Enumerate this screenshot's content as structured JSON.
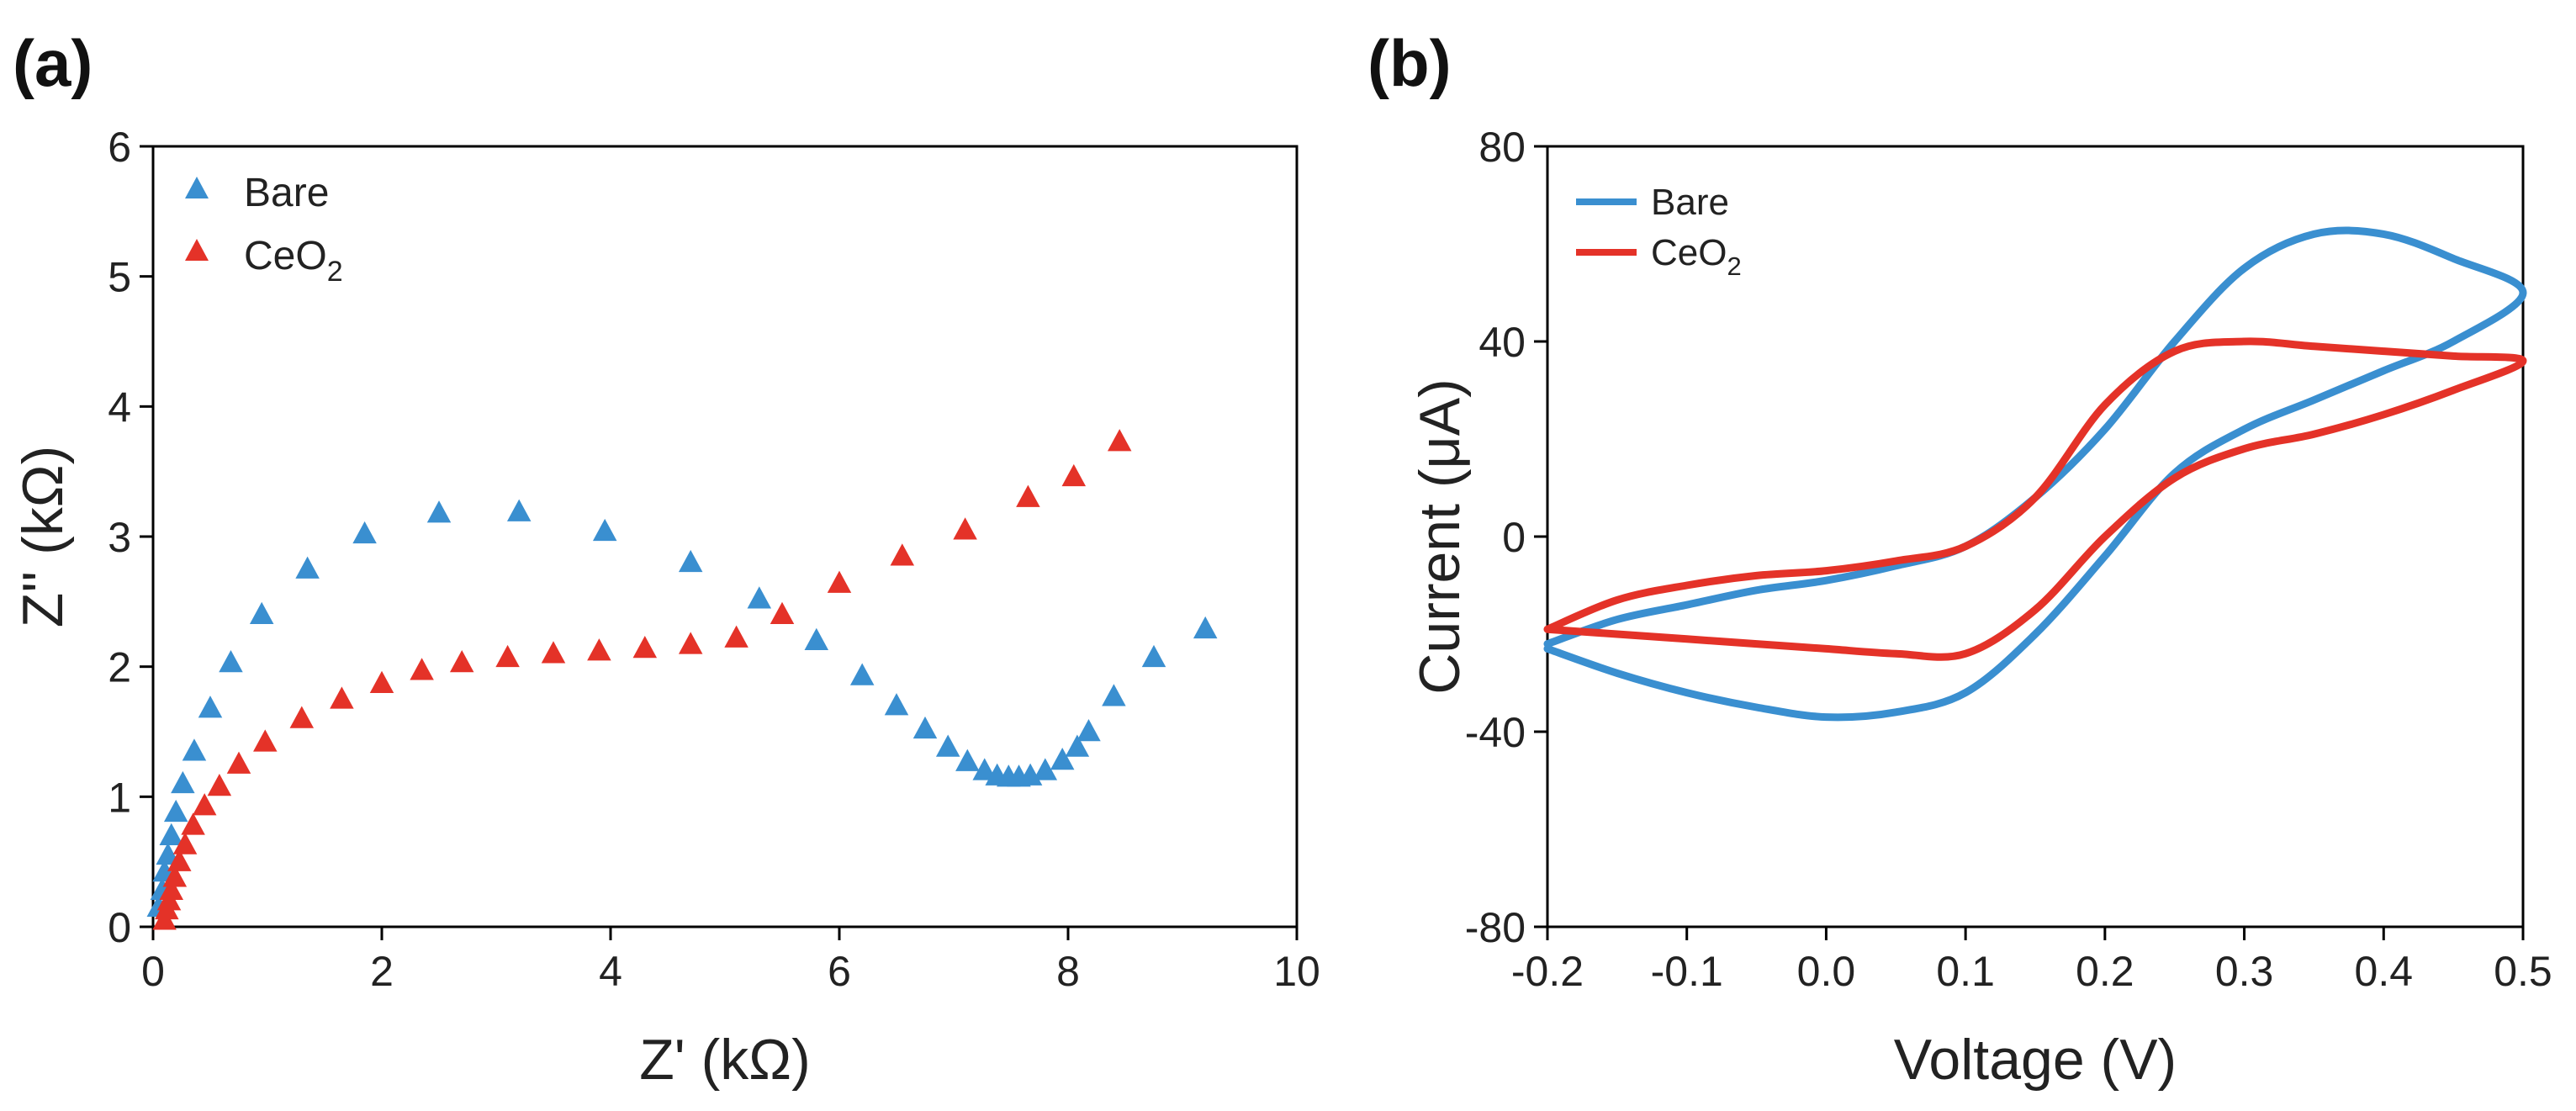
{
  "chart_data": [
    {
      "panel": "(a)",
      "type": "scatter",
      "xlabel": "Z' (kΩ)",
      "ylabel": "Z'' (kΩ)",
      "xlim": [
        0,
        10
      ],
      "ylim": [
        0,
        6
      ],
      "xticks": [
        "0",
        "2",
        "4",
        "6",
        "8",
        "10"
      ],
      "yticks": [
        "0",
        "1",
        "2",
        "3",
        "4",
        "5",
        "6"
      ],
      "legend": {
        "position": "top-left",
        "entries": [
          {
            "label": "Bare",
            "sub": ""
          },
          {
            "label": "CeO",
            "sub": "2"
          }
        ]
      },
      "series": [
        {
          "name": "Bare",
          "color": "#3a8fd0",
          "marker": "triangle",
          "x": [
            0.05,
            0.08,
            0.1,
            0.13,
            0.16,
            0.2,
            0.26,
            0.36,
            0.5,
            0.68,
            0.95,
            1.35,
            1.85,
            2.5,
            3.2,
            3.95,
            4.7,
            5.3,
            5.8,
            6.2,
            6.5,
            6.75,
            6.95,
            7.12,
            7.27,
            7.38,
            7.48,
            7.57,
            7.67,
            7.8,
            7.95,
            8.08,
            8.18,
            8.4,
            8.75,
            9.2
          ],
          "y": [
            0.15,
            0.28,
            0.42,
            0.55,
            0.7,
            0.88,
            1.1,
            1.35,
            1.68,
            2.03,
            2.4,
            2.75,
            3.02,
            3.18,
            3.19,
            3.04,
            2.8,
            2.52,
            2.2,
            1.93,
            1.7,
            1.52,
            1.38,
            1.27,
            1.2,
            1.16,
            1.15,
            1.15,
            1.16,
            1.2,
            1.28,
            1.38,
            1.5,
            1.77,
            2.07,
            2.29
          ]
        },
        {
          "name": "CeO2",
          "color": "#e43228",
          "marker": "triangle",
          "x": [
            0.1,
            0.12,
            0.14,
            0.16,
            0.19,
            0.23,
            0.28,
            0.35,
            0.45,
            0.58,
            0.75,
            0.98,
            1.3,
            1.65,
            2.0,
            2.35,
            2.7,
            3.1,
            3.5,
            3.9,
            4.3,
            4.7,
            5.1,
            5.5,
            6.0,
            6.55,
            7.1,
            7.65,
            8.05,
            8.45
          ],
          "y": [
            0.05,
            0.13,
            0.2,
            0.28,
            0.38,
            0.5,
            0.63,
            0.78,
            0.93,
            1.08,
            1.25,
            1.42,
            1.6,
            1.75,
            1.87,
            1.97,
            2.03,
            2.07,
            2.1,
            2.12,
            2.14,
            2.17,
            2.22,
            2.4,
            2.64,
            2.85,
            3.05,
            3.3,
            3.46,
            3.73
          ]
        }
      ]
    },
    {
      "panel": "(b)",
      "type": "line",
      "xlabel": "Voltage (V)",
      "ylabel": "Current (μA)",
      "xlim": [
        -0.2,
        0.5
      ],
      "ylim": [
        -80,
        80
      ],
      "xticks": [
        "-0.2",
        "-0.1",
        "0.0",
        "0.1",
        "0.2",
        "0.3",
        "0.4",
        "0.5"
      ],
      "yticks": [
        "-80",
        "-40",
        "0",
        "40",
        "80"
      ],
      "legend": {
        "position": "top-left",
        "entries": [
          {
            "label": "Bare",
            "sub": ""
          },
          {
            "label": "CeO",
            "sub": "2"
          }
        ]
      },
      "series": [
        {
          "name": "Bare",
          "color": "#3a8fd0",
          "x": [
            -0.2,
            -0.15,
            -0.1,
            -0.05,
            0.0,
            0.05,
            0.1,
            0.15,
            0.2,
            0.25,
            0.3,
            0.35,
            0.4,
            0.45,
            0.5,
            0.45,
            0.4,
            0.35,
            0.3,
            0.25,
            0.2,
            0.15,
            0.1,
            0.05,
            0.0,
            -0.05,
            -0.1,
            -0.15,
            -0.2
          ],
          "y": [
            -23,
            -28,
            -32,
            -35,
            -37,
            -36,
            -32,
            -20,
            -4,
            13,
            22,
            28,
            34,
            40,
            50,
            57,
            62,
            62,
            55,
            40,
            22,
            8,
            -2,
            -6,
            -9,
            -11,
            -14,
            -17,
            -22
          ]
        },
        {
          "name": "CeO2",
          "color": "#e43228",
          "x": [
            -0.2,
            -0.15,
            -0.1,
            -0.05,
            0.0,
            0.05,
            0.1,
            0.15,
            0.2,
            0.25,
            0.3,
            0.35,
            0.4,
            0.45,
            0.5,
            0.45,
            0.4,
            0.35,
            0.3,
            0.25,
            0.2,
            0.15,
            0.1,
            0.05,
            0.0,
            -0.05,
            -0.1,
            -0.15,
            -0.2
          ],
          "y": [
            -19,
            -20,
            -21,
            -22,
            -23,
            -24,
            -24,
            -15,
            0,
            12,
            18,
            21,
            25,
            30,
            36,
            37,
            38,
            39,
            40,
            38,
            27,
            8,
            -2,
            -5,
            -7,
            -8,
            -10,
            -13,
            -19
          ]
        }
      ]
    }
  ]
}
